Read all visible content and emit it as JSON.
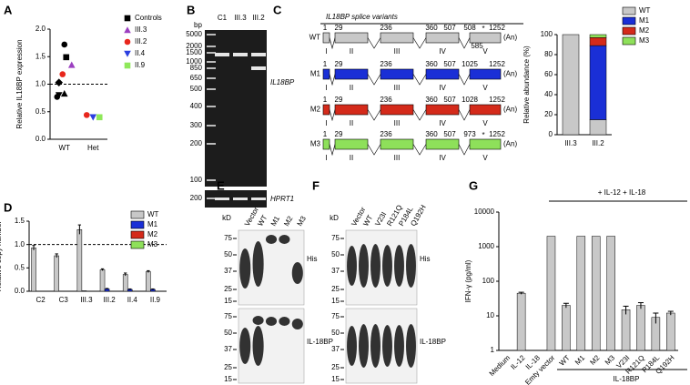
{
  "chart_data": [
    {
      "type": "scatter",
      "panel": "A",
      "y_label": "Relative IL18BP expression",
      "categories": [
        "WT",
        "Het"
      ],
      "ylim": [
        0,
        2
      ],
      "yticks": [
        {
          "value": 0,
          "label": "0.0"
        },
        0.5,
        {
          "value": 1,
          "label": "1.0"
        },
        1.5,
        {
          "value": 2,
          "label": "2.0"
        }
      ],
      "reference_line": 1,
      "series": [
        {
          "name": "Controls",
          "color": "#000000",
          "marker": "square",
          "markers": [
            "circle",
            "square",
            "diamond",
            "triangle",
            "triangle-down",
            "circle"
          ],
          "x": [
            "WT",
            "WT",
            "WT",
            "WT",
            "WT",
            "WT"
          ],
          "values": [
            1.72,
            1.49,
            1.03,
            0.83,
            0.8,
            0.77
          ]
        },
        {
          "name": "III.3",
          "color": "#9b3fc0",
          "marker": "triangle",
          "x": [
            "WT"
          ],
          "values": [
            1.35
          ]
        },
        {
          "name": "III.2",
          "color": "#e8261c",
          "marker": "circle",
          "x": [
            "WT",
            "Het"
          ],
          "values": [
            1.18,
            0.44
          ]
        },
        {
          "name": "II.4",
          "color": "#2b3fe0",
          "marker": "triangle-down",
          "x": [
            "Het"
          ],
          "values": [
            0.4
          ]
        },
        {
          "name": "II.9",
          "color": "#8fe85a",
          "marker": "square",
          "x": [
            "Het"
          ],
          "values": [
            0.4
          ]
        }
      ]
    },
    {
      "type": "stacked_bar",
      "y_label": "Relative abundance (%)",
      "categories": [
        "III.3",
        "III.2"
      ],
      "ylim": [
        0,
        100
      ],
      "yticks": [
        0,
        20,
        40,
        60,
        80,
        100
      ],
      "series": [
        {
          "name": "WT",
          "color": "#c8c8c8",
          "values": [
            100,
            15
          ]
        },
        {
          "name": "M1",
          "color": "#1a2fd6",
          "values": [
            0,
            74
          ]
        },
        {
          "name": "M2",
          "color": "#d42a1a",
          "values": [
            0,
            8
          ]
        },
        {
          "name": "M3",
          "color": "#8ee05a",
          "values": [
            0,
            3
          ]
        }
      ]
    },
    {
      "type": "bar",
      "panel": "D",
      "y_label": "Relative copy number",
      "categories": [
        "C2",
        "C3",
        "III.3",
        "III.2",
        "II.4",
        "II.9"
      ],
      "ylim": [
        0,
        1.5
      ],
      "yticks": [
        {
          "value": 0,
          "label": "0.0"
        },
        0.5,
        {
          "value": 1,
          "label": "1.0"
        },
        1.5
      ],
      "reference_line": 1,
      "series": [
        {
          "name": "WT",
          "color": "#c8c8c8",
          "values": [
            0.93,
            0.76,
            1.32,
            0.46,
            0.36,
            0.42
          ],
          "errors": [
            0.05,
            0.04,
            0.1,
            0.02,
            0.03,
            0.02
          ]
        },
        {
          "name": "M1",
          "color": "#1a2fd6",
          "values": [
            0,
            0,
            0.01,
            0.05,
            0.04,
            0.04
          ],
          "errors": [
            0,
            0,
            0,
            0.01,
            0.01,
            0.01
          ]
        },
        {
          "name": "M2",
          "color": "#d42a1a",
          "values": [
            0,
            0,
            0,
            0,
            0,
            0
          ]
        },
        {
          "name": "M3",
          "color": "#8ee05a",
          "values": [
            0,
            0,
            0,
            0,
            0,
            0
          ]
        }
      ]
    },
    {
      "type": "bar",
      "panel": "G",
      "y_label": "IFN-γ (pg/ml)",
      "log_scale": true,
      "categories": [
        "Medium",
        "IL-12",
        "IL-18",
        "Emty vector",
        "WT",
        "M1",
        "M2",
        "M3",
        "V23I",
        "R121Q",
        "P184L",
        "Q192H"
      ],
      "ylim": [
        1,
        10000
      ],
      "yticks": [
        1,
        10,
        100,
        1000,
        10000
      ],
      "annotations": [
        "+ IL-12 + IL-18",
        "IL-18BP"
      ],
      "series": [
        {
          "color": "#c8c8c8",
          "values": [
            null,
            45,
            null,
            2000,
            20,
            2000,
            2000,
            2000,
            15,
            20,
            9,
            12
          ],
          "errors": [
            null,
            3,
            null,
            0,
            3,
            0,
            0,
            0,
            4,
            4,
            3,
            1.5
          ]
        }
      ]
    }
  ],
  "panel_B": {
    "letter": "B",
    "ladder_unit": "bp",
    "lanes": [
      "C1",
      "III.3",
      "III.2"
    ],
    "ladder": [
      "5000",
      "2000",
      "1500",
      "1000",
      "850",
      "650",
      "500",
      "400",
      "300",
      "200",
      "100"
    ],
    "gel_label": "IL18BP",
    "control_ladder": [
      "200"
    ],
    "control_label": "HPRT1"
  },
  "splice_variants": {
    "letter": "C",
    "title": "IL18BP splice variants",
    "variants": [
      {
        "name": "WT",
        "color": "#c8c8c8",
        "positions": [
          "1",
          "29",
          "236",
          "360",
          "507",
          "508",
          "1252"
        ],
        "below": "585",
        "stop": "*",
        "exons": [
          "I",
          "II",
          "III",
          "IV",
          "V"
        ],
        "polyA": "(An)"
      },
      {
        "name": "M1",
        "color": "#1a2fd6",
        "positions": [
          "1",
          "29",
          "236",
          "360",
          "507",
          "1025",
          "1252"
        ],
        "exons": [
          "I",
          "II",
          "III",
          "IV",
          "V"
        ],
        "polyA": "(An)"
      },
      {
        "name": "M2",
        "color": "#d42a1a",
        "positions": [
          "1",
          "29",
          "236",
          "360",
          "507",
          "1028",
          "1252"
        ],
        "exons": [
          "I",
          "II",
          "III",
          "IV",
          "V"
        ],
        "polyA": "(An)"
      },
      {
        "name": "M3",
        "color": "#8ee05a",
        "positions": [
          "1",
          "29",
          "236",
          "360",
          "507",
          "973",
          "1252"
        ],
        "stop": "*",
        "exons": [
          "I",
          "II",
          "III",
          "IV",
          "V"
        ],
        "polyA": "(An)"
      }
    ]
  },
  "panel_E": {
    "letter": "E",
    "unit": "kD",
    "lanes": [
      "Vector",
      "WT",
      "M1",
      "M2",
      "M3"
    ],
    "markers_top": [
      "75",
      "50",
      "37",
      "25",
      "15"
    ],
    "markers_bottom": [
      "75",
      "50",
      "37",
      "25",
      "15"
    ],
    "top_label": "His",
    "bottom_label": "IL-18BP"
  },
  "panel_F": {
    "letter": "F",
    "unit": "kD",
    "lanes": [
      "Vector",
      "WT",
      "V23I",
      "R121Q",
      "P184L",
      "Q192H"
    ],
    "markers_top": [
      "75",
      "50",
      "37",
      "25",
      "15"
    ],
    "markers_bottom": [
      "75",
      "50",
      "37",
      "25",
      "15"
    ],
    "top_label": "His",
    "bottom_label": "IL-18BP"
  }
}
